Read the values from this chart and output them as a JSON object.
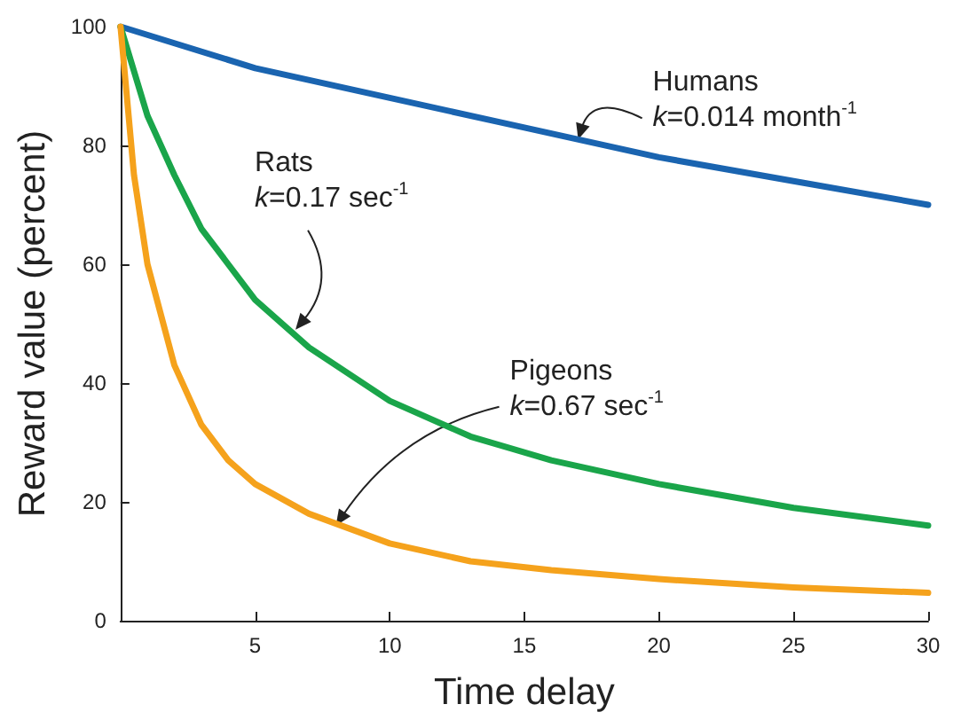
{
  "chart_data": {
    "type": "line",
    "xlabel": "Time delay",
    "ylabel": "Reward value (percent)",
    "xlim": [
      0,
      30
    ],
    "xticks": [
      5,
      10,
      15,
      20,
      25,
      30
    ],
    "ylim": [
      0,
      100
    ],
    "yticks": [
      0,
      20,
      40,
      60,
      80,
      100
    ],
    "grid": false,
    "marker": "none",
    "line_style": "solid",
    "series": [
      {
        "color": "#1a64b0",
        "x": [
          0,
          5,
          10,
          15,
          20,
          25,
          30
        ],
        "values": [
          100,
          93,
          88,
          83,
          78,
          74,
          70
        ]
      },
      {
        "color": "#1aa54a",
        "x": [
          0,
          1,
          2,
          3,
          4,
          5,
          7,
          10,
          13,
          16,
          20,
          25,
          30
        ],
        "values": [
          100,
          85,
          75,
          66,
          60,
          54,
          46,
          37,
          31,
          27,
          23,
          19,
          16
        ]
      },
      {
        "color": "#f5a21c",
        "x": [
          0,
          0.5,
          1,
          2,
          3,
          4,
          5,
          7,
          10,
          13,
          16,
          20,
          25,
          30
        ],
        "values": [
          100,
          75,
          60,
          43,
          33,
          27,
          23,
          18,
          13,
          10,
          8.5,
          7,
          5.6,
          4.7
        ]
      }
    ],
    "annotations": [
      {
        "text": "Humans\nk=0.014 month$^{-1}$",
        "x": 17,
        "y": 81
      },
      {
        "text": "Rats\nk=0.17 sec$^{-1}$",
        "x": 6.5,
        "y": 49
      },
      {
        "text": "Pigeons\nk=0.67 sec$^{-1}$",
        "x": 8,
        "y": 16
      }
    ]
  }
}
